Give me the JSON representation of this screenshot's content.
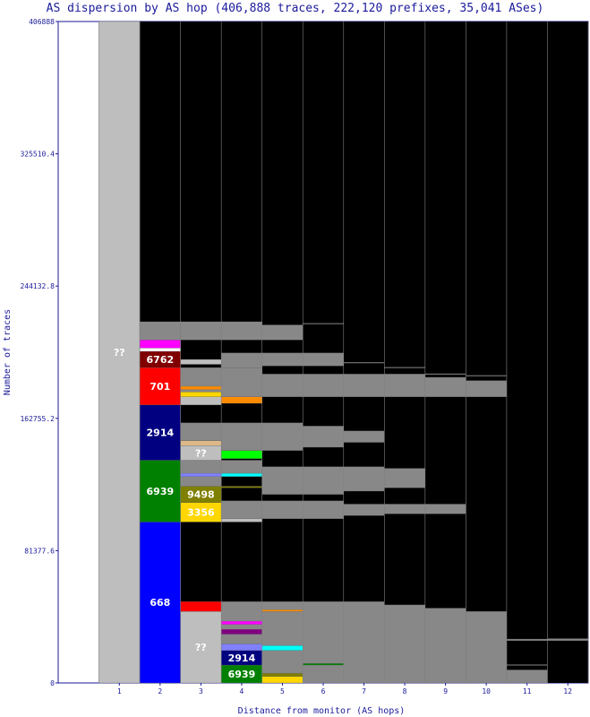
{
  "chart_data": {
    "type": "bar",
    "title": "AS dispersion by AS hop (406,888 traces, 222,120 prefixes, 35,041 ASes)",
    "xlabel": "Distance from monitor (AS hops)",
    "ylabel": "Number of traces",
    "ylim": [
      0,
      406888
    ],
    "yticks": [
      "0",
      "81377.6",
      "162755.2",
      "244132.8",
      "325510.4",
      "406888"
    ],
    "categories": [
      "1",
      "2",
      "3",
      "4",
      "5",
      "6",
      "7",
      "8",
      "9",
      "10",
      "11",
      "12"
    ],
    "totals": [
      406888,
      222000,
      222000,
      222000,
      220000,
      221000,
      197000,
      194000,
      190000,
      189000,
      11000,
      27000
    ],
    "segments": [
      {
        "hop": 1,
        "from": 0,
        "to": 406888,
        "color": "#bebebe",
        "label": "??",
        "label_color": "#ffffff"
      },
      {
        "hop": 2,
        "from": 0,
        "to": 99000,
        "color": "#0000ff",
        "label": "668",
        "label_color": "#ffffff"
      },
      {
        "hop": 2,
        "from": 99000,
        "to": 137000,
        "color": "#008000",
        "label": "6939",
        "label_color": "#ffffff"
      },
      {
        "hop": 2,
        "from": 137000,
        "to": 171000,
        "color": "#000080",
        "label": "2914",
        "label_color": "#ffffff"
      },
      {
        "hop": 2,
        "from": 171000,
        "to": 194000,
        "color": "#ff0000",
        "label": "701",
        "label_color": "#ffffff"
      },
      {
        "hop": 2,
        "from": 194000,
        "to": 204000,
        "color": "#800000",
        "label": "6762",
        "label_color": "#ffffff"
      },
      {
        "hop": 2,
        "from": 204000,
        "to": 206000,
        "color": "#ffffff",
        "label": "",
        "label_color": "#ffffff"
      },
      {
        "hop": 2,
        "from": 206000,
        "to": 211000,
        "color": "#ff00ff",
        "label": "",
        "label_color": "#ffffff"
      },
      {
        "hop": 2,
        "from": 211000,
        "to": 222000,
        "color": "#888888",
        "label": "",
        "label_color": "#ffffff"
      },
      {
        "hop": 3,
        "from": 0,
        "to": 44000,
        "color": "#bebebe",
        "label": "??",
        "label_color": "#ffffff"
      },
      {
        "hop": 3,
        "from": 44000,
        "to": 50000,
        "color": "#ff0000",
        "label": "",
        "label_color": "#ffffff"
      },
      {
        "hop": 3,
        "from": 99000,
        "to": 111000,
        "color": "#ffd700",
        "label": "3356",
        "label_color": "#ffffff"
      },
      {
        "hop": 3,
        "from": 111000,
        "to": 121000,
        "color": "#808000",
        "label": "9498",
        "label_color": "#ffffff"
      },
      {
        "hop": 3,
        "from": 121000,
        "to": 137000,
        "color": "#888888",
        "label": "",
        "label_color": "#ffffff"
      },
      {
        "hop": 3,
        "from": 127000,
        "to": 129000,
        "color": "#8080ff",
        "label": "",
        "label_color": "#ffffff"
      },
      {
        "hop": 3,
        "from": 137000,
        "to": 146000,
        "color": "#bebebe",
        "label": "??",
        "label_color": "#ffffff"
      },
      {
        "hop": 3,
        "from": 146000,
        "to": 149000,
        "color": "#deb887",
        "label": "",
        "label_color": "#ffffff"
      },
      {
        "hop": 3,
        "from": 149000,
        "to": 160000,
        "color": "#888888",
        "label": "",
        "label_color": "#ffffff"
      },
      {
        "hop": 3,
        "from": 171000,
        "to": 176000,
        "color": "#bebebe",
        "label": "",
        "label_color": "#ffffff"
      },
      {
        "hop": 3,
        "from": 176000,
        "to": 179000,
        "color": "#ffd700",
        "label": "",
        "label_color": "#ffffff"
      },
      {
        "hop": 3,
        "from": 179000,
        "to": 194000,
        "color": "#888888",
        "label": "",
        "label_color": "#ffffff"
      },
      {
        "hop": 3,
        "from": 180500,
        "to": 182500,
        "color": "#ff8c00",
        "label": "",
        "label_color": "#ffffff"
      },
      {
        "hop": 3,
        "from": 196000,
        "to": 199000,
        "color": "#bebebe",
        "label": "",
        "label_color": "#ffffff"
      },
      {
        "hop": 3,
        "from": 211000,
        "to": 222000,
        "color": "#888888",
        "label": "",
        "label_color": "#ffffff"
      },
      {
        "hop": 4,
        "from": 0,
        "to": 11000,
        "color": "#008000",
        "label": "6939",
        "label_color": "#ffffff"
      },
      {
        "hop": 4,
        "from": 11000,
        "to": 20000,
        "color": "#000080",
        "label": "2914",
        "label_color": "#ffffff"
      },
      {
        "hop": 4,
        "from": 20000,
        "to": 24000,
        "color": "#8080ff",
        "label": "",
        "label_color": "#ffffff"
      },
      {
        "hop": 4,
        "from": 24000,
        "to": 50000,
        "color": "#888888",
        "label": "",
        "label_color": "#ffffff"
      },
      {
        "hop": 4,
        "from": 30000,
        "to": 33000,
        "color": "#800080",
        "label": "",
        "label_color": "#ffffff"
      },
      {
        "hop": 4,
        "from": 36000,
        "to": 38000,
        "color": "#ff00ff",
        "label": "",
        "label_color": "#ffffff"
      },
      {
        "hop": 4,
        "from": 99000,
        "to": 101000,
        "color": "#bebebe",
        "label": "",
        "label_color": "#ffffff"
      },
      {
        "hop": 4,
        "from": 101000,
        "to": 112000,
        "color": "#888888",
        "label": "",
        "label_color": "#ffffff"
      },
      {
        "hop": 4,
        "from": 120000,
        "to": 121000,
        "color": "#808000",
        "label": "",
        "label_color": "#ffffff"
      },
      {
        "hop": 4,
        "from": 127000,
        "to": 129000,
        "color": "#00ffff",
        "label": "",
        "label_color": "#ffffff"
      },
      {
        "hop": 4,
        "from": 129000,
        "to": 137000,
        "color": "#888888",
        "label": "",
        "label_color": "#ffffff"
      },
      {
        "hop": 4,
        "from": 138000,
        "to": 143000,
        "color": "#00ff00",
        "label": "",
        "label_color": "#ffffff"
      },
      {
        "hop": 4,
        "from": 143000,
        "to": 160000,
        "color": "#888888",
        "label": "",
        "label_color": "#ffffff"
      },
      {
        "hop": 4,
        "from": 172000,
        "to": 176000,
        "color": "#ff8c00",
        "label": "",
        "label_color": "#ffffff"
      },
      {
        "hop": 4,
        "from": 176000,
        "to": 194000,
        "color": "#888888",
        "label": "",
        "label_color": "#ffffff"
      },
      {
        "hop": 4,
        "from": 194000,
        "to": 203000,
        "color": "#888888",
        "label": "",
        "label_color": "#ffffff"
      },
      {
        "hop": 4,
        "from": 211000,
        "to": 222000,
        "color": "#888888",
        "label": "",
        "label_color": "#ffffff"
      },
      {
        "hop": 5,
        "from": 0,
        "to": 4000,
        "color": "#ffd700",
        "label": "",
        "label_color": "#ffffff"
      },
      {
        "hop": 5,
        "from": 4000,
        "to": 6000,
        "color": "#808000",
        "label": "",
        "label_color": "#ffffff"
      },
      {
        "hop": 5,
        "from": 6000,
        "to": 20000,
        "color": "#888888",
        "label": "",
        "label_color": "#ffffff"
      },
      {
        "hop": 5,
        "from": 20000,
        "to": 23000,
        "color": "#00ffff",
        "label": "",
        "label_color": "#ffffff"
      },
      {
        "hop": 5,
        "from": 23000,
        "to": 50000,
        "color": "#888888",
        "label": "",
        "label_color": "#ffffff"
      },
      {
        "hop": 5,
        "from": 44000,
        "to": 45000,
        "color": "#ff8c00",
        "label": "",
        "label_color": "#ffffff"
      },
      {
        "hop": 5,
        "from": 101000,
        "to": 112000,
        "color": "#888888",
        "label": "",
        "label_color": "#ffffff"
      },
      {
        "hop": 5,
        "from": 116000,
        "to": 133000,
        "color": "#888888",
        "label": "",
        "label_color": "#ffffff"
      },
      {
        "hop": 5,
        "from": 143000,
        "to": 160000,
        "color": "#888888",
        "label": "",
        "label_color": "#ffffff"
      },
      {
        "hop": 5,
        "from": 176000,
        "to": 190000,
        "color": "#888888",
        "label": "",
        "label_color": "#ffffff"
      },
      {
        "hop": 5,
        "from": 195000,
        "to": 203000,
        "color": "#888888",
        "label": "",
        "label_color": "#ffffff"
      },
      {
        "hop": 5,
        "from": 211000,
        "to": 220000,
        "color": "#888888",
        "label": "",
        "label_color": "#ffffff"
      },
      {
        "hop": 6,
        "from": 0,
        "to": 50000,
        "color": "#888888",
        "label": "",
        "label_color": "#ffffff"
      },
      {
        "hop": 6,
        "from": 11000,
        "to": 12000,
        "color": "#008000",
        "label": "",
        "label_color": "#ffffff"
      },
      {
        "hop": 6,
        "from": 101000,
        "to": 112000,
        "color": "#888888",
        "label": "",
        "label_color": "#ffffff"
      },
      {
        "hop": 6,
        "from": 116000,
        "to": 133000,
        "color": "#888888",
        "label": "",
        "label_color": "#ffffff"
      },
      {
        "hop": 6,
        "from": 145000,
        "to": 158000,
        "color": "#888888",
        "label": "",
        "label_color": "#ffffff"
      },
      {
        "hop": 6,
        "from": 176000,
        "to": 190000,
        "color": "#888888",
        "label": "",
        "label_color": "#ffffff"
      },
      {
        "hop": 6,
        "from": 195000,
        "to": 203000,
        "color": "#888888",
        "label": "",
        "label_color": "#ffffff"
      },
      {
        "hop": 7,
        "from": 0,
        "to": 50000,
        "color": "#888888",
        "label": "",
        "label_color": "#ffffff"
      },
      {
        "hop": 7,
        "from": 103000,
        "to": 110000,
        "color": "#888888",
        "label": "",
        "label_color": "#ffffff"
      },
      {
        "hop": 7,
        "from": 118000,
        "to": 133000,
        "color": "#888888",
        "label": "",
        "label_color": "#ffffff"
      },
      {
        "hop": 7,
        "from": 148000,
        "to": 155000,
        "color": "#888888",
        "label": "",
        "label_color": "#ffffff"
      },
      {
        "hop": 7,
        "from": 176000,
        "to": 190000,
        "color": "#888888",
        "label": "",
        "label_color": "#ffffff"
      },
      {
        "hop": 8,
        "from": 0,
        "to": 48000,
        "color": "#888888",
        "label": "",
        "label_color": "#ffffff"
      },
      {
        "hop": 8,
        "from": 104000,
        "to": 110000,
        "color": "#888888",
        "label": "",
        "label_color": "#ffffff"
      },
      {
        "hop": 8,
        "from": 120000,
        "to": 132000,
        "color": "#888888",
        "label": "",
        "label_color": "#ffffff"
      },
      {
        "hop": 8,
        "from": 176000,
        "to": 190000,
        "color": "#888888",
        "label": "",
        "label_color": "#ffffff"
      },
      {
        "hop": 9,
        "from": 0,
        "to": 46000,
        "color": "#888888",
        "label": "",
        "label_color": "#ffffff"
      },
      {
        "hop": 9,
        "from": 104000,
        "to": 110000,
        "color": "#888888",
        "label": "",
        "label_color": "#ffffff"
      },
      {
        "hop": 9,
        "from": 176000,
        "to": 188000,
        "color": "#888888",
        "label": "",
        "label_color": "#ffffff"
      },
      {
        "hop": 10,
        "from": 0,
        "to": 44000,
        "color": "#888888",
        "label": "",
        "label_color": "#ffffff"
      },
      {
        "hop": 10,
        "from": 176000,
        "to": 186000,
        "color": "#888888",
        "label": "",
        "label_color": "#ffffff"
      },
      {
        "hop": 11,
        "from": 0,
        "to": 8000,
        "color": "#888888",
        "label": "",
        "label_color": "#ffffff"
      },
      {
        "hop": 11,
        "from": 26000,
        "to": 27000,
        "color": "#888888",
        "label": "",
        "label_color": "#ffffff"
      },
      {
        "hop": 12,
        "from": 26000,
        "to": 27000,
        "color": "#888888",
        "label": "",
        "label_color": "#ffffff"
      }
    ],
    "dark_label_hops": [
      3
    ]
  }
}
